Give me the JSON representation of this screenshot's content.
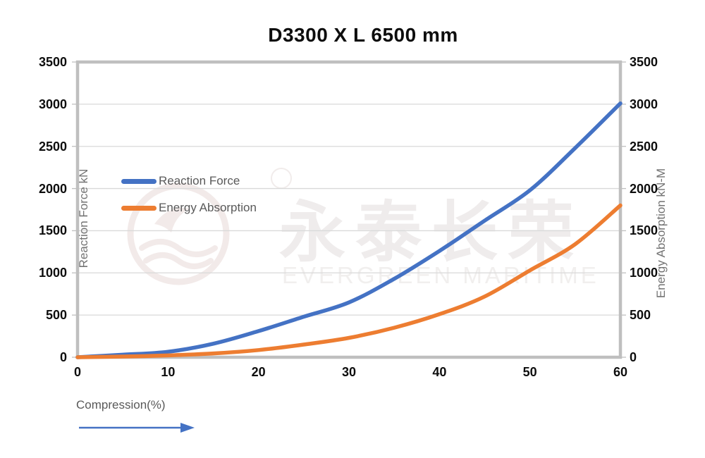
{
  "chart_data": {
    "type": "line",
    "title": "D3300 X L 6500 mm",
    "xlabel": "Compression(%)",
    "ylabel_left": "Reaction Force kN",
    "ylabel_right": "Energy Absorption kN-M",
    "xlim": [
      0,
      60
    ],
    "ylim_left": [
      0,
      3500
    ],
    "ylim_right": [
      0,
      3500
    ],
    "x_ticks": [
      0,
      10,
      20,
      30,
      40,
      50,
      60
    ],
    "y_ticks": [
      0,
      500,
      1000,
      1500,
      2000,
      2500,
      3000,
      3500
    ],
    "grid": "horizontal",
    "legend_position": "inside-top-left",
    "x": [
      0,
      5,
      10,
      15,
      20,
      25,
      30,
      35,
      40,
      45,
      50,
      55,
      60
    ],
    "series": [
      {
        "name": "Reaction Force",
        "axis": "left",
        "color": "#4472C4",
        "values": [
          0,
          30,
          65,
          160,
          310,
          480,
          650,
          930,
          1260,
          1620,
          1980,
          2480,
          3010
        ]
      },
      {
        "name": "Energy Absorption",
        "axis": "right",
        "color": "#ED7D31",
        "values": [
          0,
          8,
          22,
          45,
          85,
          150,
          230,
          350,
          510,
          720,
          1030,
          1340,
          1800
        ]
      }
    ]
  },
  "watermark": {
    "cn": "永泰长荣",
    "en": "EVERGREEN MARITIME"
  },
  "colors": {
    "gridline": "#D9D9D9",
    "plot_border": "#BFBFBF",
    "tick_text": "#0d0d0d",
    "axis_title_text": "#737373",
    "legend_text": "#595959",
    "arrow": "#4472C4",
    "watermark": "#efecec"
  }
}
